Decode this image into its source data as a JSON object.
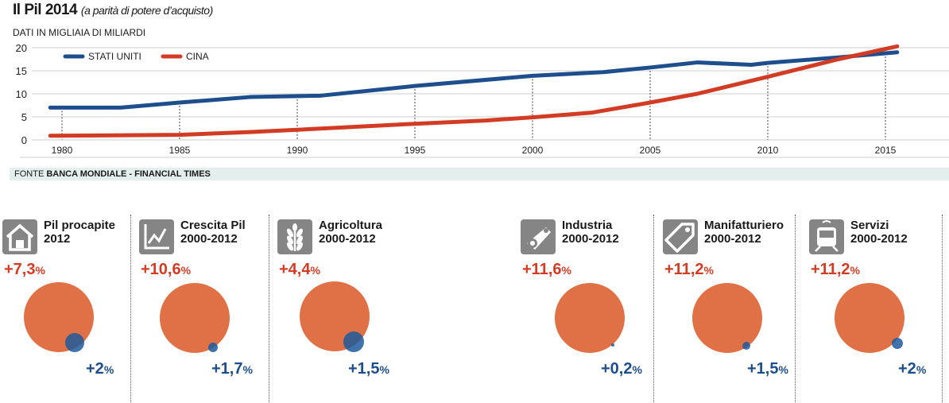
{
  "chart_data": [
    {
      "type": "line",
      "title": "Il Pil 2014",
      "subtitle": "(a parità di potere d’acquisto)",
      "ylabel": "DATI IN MIGLIAIA DI MILIARDI",
      "ylim": [
        0,
        20
      ],
      "xlim": [
        1979,
        2016
      ],
      "yticks": [
        "0",
        "5",
        "10",
        "15",
        "20"
      ],
      "xticks": [
        "1980",
        "1985",
        "1990",
        "1995",
        "2000",
        "2005",
        "2010",
        "2015"
      ],
      "grid": "horizontal",
      "legend": "top-left",
      "series": [
        {
          "name": "STATI UNITI",
          "color": "#1e4f8c",
          "points": [
            [
              1979.5,
              7
            ],
            [
              1982.5,
              7
            ],
            [
              1985,
              8.1
            ],
            [
              1988,
              9.3
            ],
            [
              1991,
              9.6
            ],
            [
              1995,
              11.7
            ],
            [
              2000,
              13.9
            ],
            [
              2003,
              14.7
            ],
            [
              2005,
              15.7
            ],
            [
              2007,
              16.8
            ],
            [
              2009.3,
              16.3
            ],
            [
              2010,
              16.7
            ],
            [
              2013,
              17.9
            ],
            [
              2015.5,
              19.0
            ]
          ]
        },
        {
          "name": "CINA",
          "color": "#d23c24",
          "points": [
            [
              1979.5,
              0.9
            ],
            [
              1985,
              1.1
            ],
            [
              1988,
              1.7
            ],
            [
              1990,
              2.2
            ],
            [
              1995,
              3.5
            ],
            [
              1998,
              4.2
            ],
            [
              2000,
              4.9
            ],
            [
              2002.5,
              5.9
            ],
            [
              2005,
              8.1
            ],
            [
              2007,
              10
            ],
            [
              2010,
              13.7
            ],
            [
              2013,
              17.5
            ],
            [
              2015.5,
              20.3
            ]
          ]
        }
      ],
      "source_prefix": "FONTE",
      "source": "BANCA MONDIALE - FINANCIAL TIMES"
    },
    {
      "type": "bubble-comparison",
      "colors": {
        "china": "#e07046",
        "usa": "#1e5a9c"
      },
      "panels": [
        {
          "title": "Pil procapite",
          "period": "2012",
          "icon": "house-icon",
          "china": "+7,3",
          "usa": "+2",
          "unit": "%"
        },
        {
          "title": "Crescita Pil",
          "period": "2000-2012",
          "icon": "line-chart-icon",
          "china": "+10,6",
          "usa": "+1,7",
          "unit": "%"
        },
        {
          "title": "Agricoltura",
          "period": "2000-2012",
          "icon": "wheat-icon",
          "china": "+4,4",
          "usa": "+1,5",
          "unit": "%"
        },
        {
          "title": "Industria",
          "period": "2000-2012",
          "icon": "gear-chain-icon",
          "china": "+11,6",
          "usa": "+0,2",
          "unit": "%"
        },
        {
          "title": "Manifatturiero",
          "period": "2000-2012",
          "icon": "tag-icon",
          "china": "+11,2",
          "usa": "+1,5",
          "unit": "%"
        },
        {
          "title": "Servizi",
          "period": "2000-2012",
          "icon": "train-icon",
          "china": "+11,2",
          "usa": "+2",
          "unit": "%"
        }
      ]
    }
  ]
}
